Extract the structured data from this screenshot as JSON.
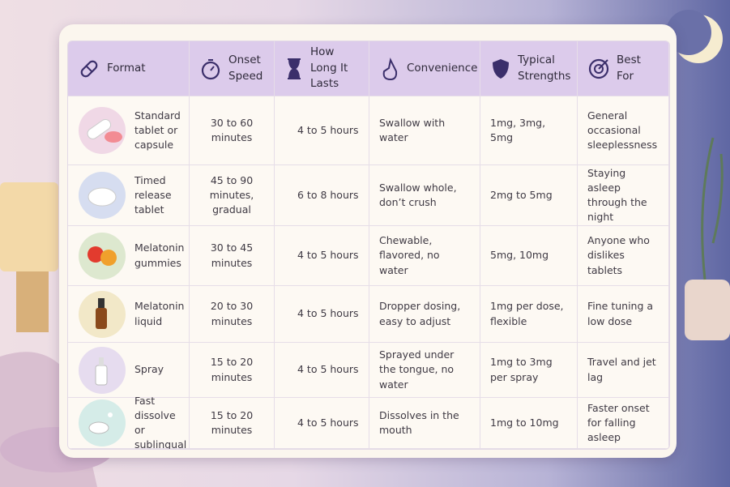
{
  "table": {
    "headers": [
      "Format",
      "Onset Speed",
      "How Long It Lasts",
      "Convenience",
      "Typical Strengths",
      "Best For"
    ],
    "rows": [
      [
        "Standard tablet or capsule",
        "30 to 60 minutes",
        "4 to 5 hours",
        "Swallow with water",
        "1mg, 3mg, 5mg",
        "General occasional sleeplessness"
      ],
      [
        "Timed release tablet",
        "45 to 90 minutes, gradual",
        "6 to 8 hours",
        "Swallow whole, don’t crush",
        "2mg to 5mg",
        "Staying asleep through the night"
      ],
      [
        "Melatonin gummies",
        "30 to 45 minutes",
        "4 to 5 hours",
        "Chewable, flavored, no water",
        "5mg, 10mg",
        "Anyone who dislikes tablets"
      ],
      [
        "Melatonin liquid",
        "20 to 30 minutes",
        "4 to 5 hours",
        "Dropper dosing, easy to adjust",
        "1mg per dose, flexible",
        "Fine tuning a low dose"
      ],
      [
        "Spray",
        "15 to 20 minutes",
        "4 to 5 hours",
        "Sprayed under the tongue, no water",
        "1mg to 3mg per spray",
        "Travel and jet lag"
      ],
      [
        "Fast dissolve or sublingual",
        "15 to 20 minutes",
        "4 to 5 hours",
        "Dissolves in the mouth",
        "1mg to 10mg",
        "Faster onset for falling asleep"
      ]
    ]
  }
}
